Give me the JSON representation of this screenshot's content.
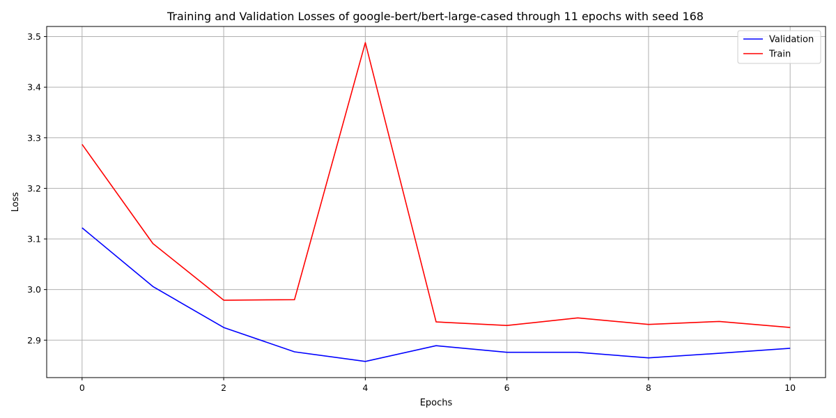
{
  "chart_data": {
    "type": "line",
    "title": "Training and Validation Losses of google-bert/bert-large-cased through 11 epochs with seed 168",
    "xlabel": "Epochs",
    "ylabel": "Loss",
    "x": [
      0,
      1,
      2,
      3,
      4,
      5,
      6,
      7,
      8,
      9,
      10
    ],
    "xlim": [
      -0.5,
      10.5
    ],
    "ylim": [
      2.826,
      3.52
    ],
    "xticks": [
      0,
      2,
      4,
      6,
      8,
      10
    ],
    "yticks": [
      2.9,
      3.0,
      3.1,
      3.2,
      3.3,
      3.4,
      3.5
    ],
    "xtick_labels": [
      "0",
      "2",
      "4",
      "6",
      "8",
      "10"
    ],
    "ytick_labels": [
      "2.9",
      "3.0",
      "3.1",
      "3.2",
      "3.3",
      "3.4",
      "3.5"
    ],
    "grid": true,
    "legend_position": "top-right",
    "series": [
      {
        "name": "Validation",
        "color": "#0000ff",
        "values": [
          3.122,
          3.006,
          2.925,
          2.877,
          2.858,
          2.889,
          2.876,
          2.876,
          2.865,
          2.874,
          2.884
        ]
      },
      {
        "name": "Train",
        "color": "#ff0000",
        "values": [
          3.287,
          3.091,
          2.979,
          2.98,
          3.488,
          2.936,
          2.929,
          2.944,
          2.931,
          2.937,
          2.925
        ]
      }
    ]
  }
}
